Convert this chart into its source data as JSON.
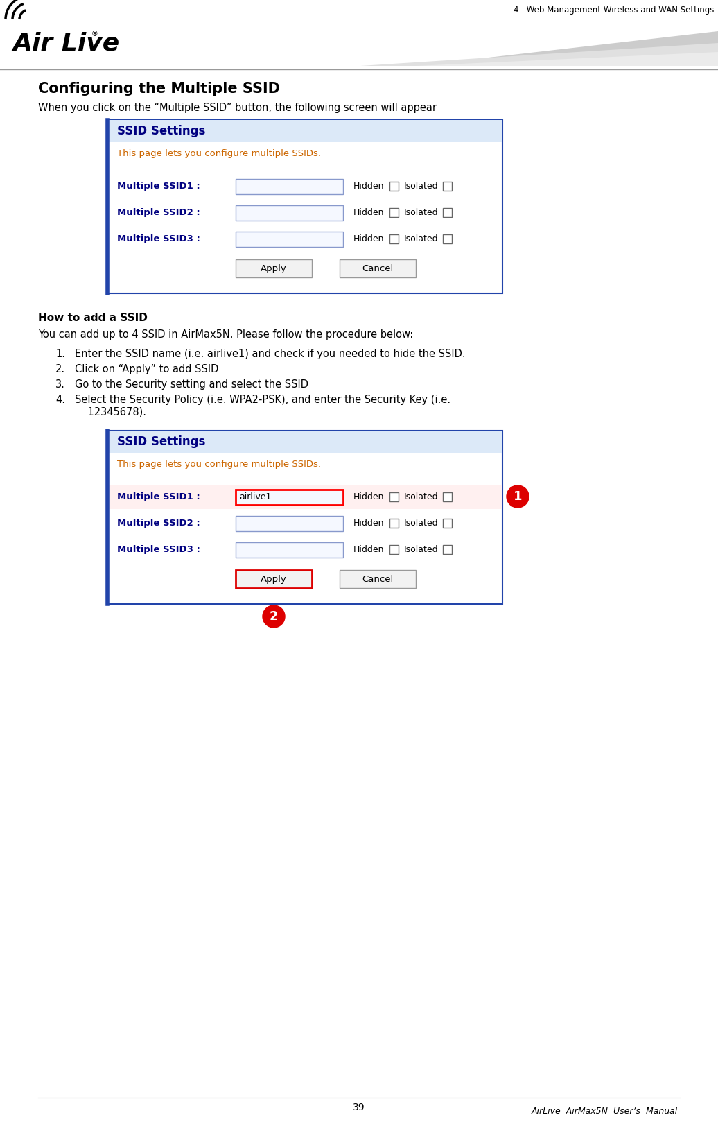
{
  "page_title_right": "4.  Web Management-Wireless and WAN Settings",
  "background_color": "#ffffff",
  "section_title": "Configuring the Multiple SSID",
  "intro_text": "When you click on the “Multiple SSID” button, the following screen will appear",
  "ssid_box1": {
    "title": "SSID Settings",
    "subtitle": "This page lets you configure multiple SSIDs.",
    "rows": [
      {
        "label": "Multiple SSID1 :",
        "value": "",
        "highlight": false
      },
      {
        "label": "Multiple SSID2 :",
        "value": "",
        "highlight": false
      },
      {
        "label": "Multiple SSID3 :",
        "value": "",
        "highlight": false
      }
    ],
    "apply_highlight": false,
    "border_color": "#2244aa",
    "title_color": "#000080",
    "subtitle_color": "#cc6600",
    "label_color": "#000080",
    "input_border": "#8899cc",
    "input_bg": "#f5f8ff"
  },
  "how_to_title": "How to add a SSID",
  "how_to_intro": "You can add up to 4 SSID in AirMax5N. Please follow the procedure below:",
  "how_to_steps": [
    "Enter the SSID name (i.e. airlive1) and check if you needed to hide the SSID.",
    "Click on “Apply” to add SSID",
    "Go to the Security setting and select the SSID",
    "Select the Security Policy (i.e. WPA2-PSK), and enter the Security Key (i.e.\n    12345678)."
  ],
  "ssid_box2": {
    "title": "SSID Settings",
    "subtitle": "This page lets you configure multiple SSIDs.",
    "rows": [
      {
        "label": "Multiple SSID1 :",
        "value": "airlive1",
        "highlight": true
      },
      {
        "label": "Multiple SSID2 :",
        "value": "",
        "highlight": false
      },
      {
        "label": "Multiple SSID3 :",
        "value": "",
        "highlight": false
      }
    ],
    "apply_highlight": true,
    "border_color": "#2244aa",
    "title_color": "#000080",
    "subtitle_color": "#cc6600",
    "label_color": "#000080",
    "input_border": "#8899cc",
    "input_bg": "#f5f8ff"
  },
  "circle_color": "#dd0000",
  "circle1_label": "1",
  "circle2_label": "2",
  "footer_page": "39",
  "footer_manual": "AirLive  AirMax5N  User’s  Manual"
}
